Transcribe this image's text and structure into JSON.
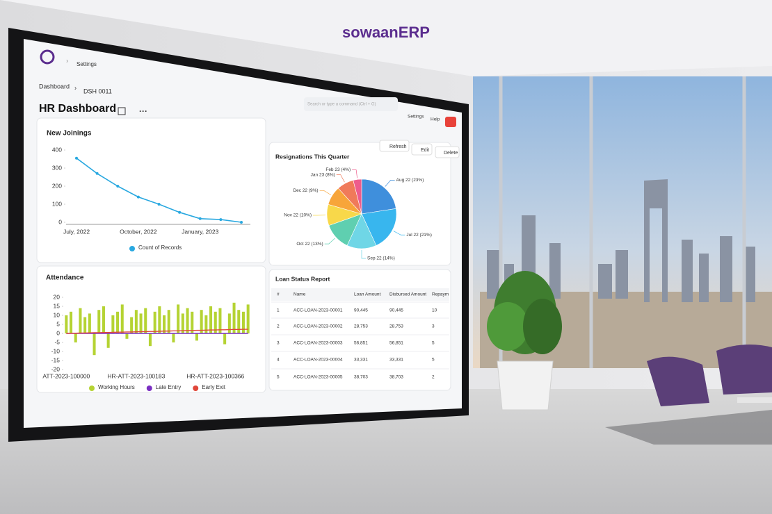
{
  "brand": "sowaanERP",
  "navbar": {
    "breadcrumb": "Settings",
    "search_placeholder": "Search or type a command (Ctrl + G)",
    "menus": [
      "Settings",
      "Help"
    ]
  },
  "page": {
    "breadcrumbs": [
      "Dashboard",
      "DSH 0011"
    ],
    "title": "HR Dashboard",
    "actions": [
      "Refresh",
      "Edit",
      "Delete"
    ]
  },
  "chart_data": [
    {
      "type": "line",
      "title": "New Joinings",
      "categories": [
        "July, 2022",
        null,
        null,
        "October, 2022",
        null,
        null,
        "January, 2023",
        null,
        null
      ],
      "series": [
        {
          "name": "Count of Records",
          "color": "#29a8e0",
          "values": [
            355,
            270,
            200,
            140,
            100,
            55,
            20,
            15,
            0
          ]
        }
      ],
      "ylim": [
        0,
        400
      ],
      "yticks": [
        0,
        100,
        200,
        300,
        400
      ],
      "grid": false,
      "legend": "bottom"
    },
    {
      "type": "bar",
      "title": "Attendance",
      "categories": [
        "ATT-2023-100000",
        null,
        null,
        null,
        null,
        null,
        null,
        null,
        null,
        null,
        null,
        null,
        null,
        null,
        null,
        "HR-ATT-2023-100183",
        null,
        null,
        null,
        null,
        null,
        null,
        null,
        null,
        null,
        null,
        null,
        null,
        null,
        null,
        null,
        null,
        "HR-ATT-2023-100366",
        null,
        null,
        null,
        null,
        null,
        null,
        null
      ],
      "series": [
        {
          "name": "Working Hours",
          "color": "#b5d333",
          "style": "bar",
          "values": [
            10,
            12,
            -5,
            14,
            9,
            11,
            -12,
            13,
            15,
            -8,
            10,
            12,
            16,
            -3,
            9,
            13,
            11,
            14,
            -7,
            12,
            15,
            10,
            13,
            -5,
            16,
            11,
            14,
            12,
            -4,
            13,
            10,
            15,
            12,
            14,
            -6,
            11,
            17,
            13,
            12,
            16
          ]
        },
        {
          "name": "Late Entry",
          "color": "#7a2ec2",
          "style": "line",
          "values": [
            0,
            0,
            0,
            0,
            0,
            0,
            0,
            0,
            0,
            0,
            0,
            0,
            0,
            0,
            0,
            0,
            0,
            0,
            0,
            0,
            0,
            0,
            0,
            0,
            0,
            0,
            0,
            0,
            0,
            0,
            0,
            0,
            0,
            0,
            0,
            0,
            0,
            0,
            0,
            0
          ]
        },
        {
          "name": "Early Exit",
          "color": "#e0473a",
          "style": "line",
          "values": [
            0,
            0.1,
            0.1,
            0.2,
            0.2,
            0.3,
            0.4,
            0.4,
            0.5,
            0.5,
            0.6,
            0.7,
            0.7,
            0.8,
            0.8,
            0.9,
            1,
            1,
            1.1,
            1.1,
            1.2,
            1.3,
            1.3,
            1.4,
            1.4,
            1.5,
            1.6,
            1.6,
            1.7,
            1.7,
            1.8,
            1.9,
            1.9,
            2,
            2,
            2.1,
            2.2,
            2.2,
            2.3,
            2.3
          ]
        }
      ],
      "ylim": [
        -20,
        20
      ],
      "yticks": [
        20,
        15,
        10,
        5,
        0,
        -5,
        -10,
        -15,
        -20
      ],
      "grid": false,
      "legend": "bottom"
    },
    {
      "type": "pie",
      "title": "Resignations This Quarter",
      "categories": [
        "Aug 22 (23%)",
        "Jul 22 (21%)",
        "Sep 22 (14%)",
        "Oct 22 (13%)",
        "Nov 22 (10%)",
        "Dec 22 (9%)",
        "Jan 23 (8%)",
        "Feb 23 (4%)"
      ],
      "values": [
        23,
        21,
        14,
        13,
        10,
        9,
        8,
        4
      ],
      "colors": [
        "#3f8fdc",
        "#38b6ee",
        "#6fd6e6",
        "#5fcfb0",
        "#f8d84a",
        "#f7a53a",
        "#f07a5a",
        "#ee5c8c"
      ]
    }
  ],
  "table": {
    "title": "Loan Status Report",
    "columns": [
      "#",
      "Name",
      "Loan Amount",
      "Disbursed Amount",
      "Repaym"
    ],
    "rows": [
      [
        "1",
        "ACC-LOAN-2023-00001",
        "90,445",
        "90,445",
        "10"
      ],
      [
        "2",
        "ACC-LOAN-2023-00002",
        "28,753",
        "28,753",
        "3"
      ],
      [
        "3",
        "ACC-LOAN-2023-00003",
        "56,851",
        "56,851",
        "5"
      ],
      [
        "4",
        "ACC-LOAN-2023-00004",
        "33,331",
        "33,331",
        "5"
      ],
      [
        "5",
        "ACC-LOAN-2023-00005",
        "38,703",
        "38,703",
        "2"
      ]
    ]
  }
}
